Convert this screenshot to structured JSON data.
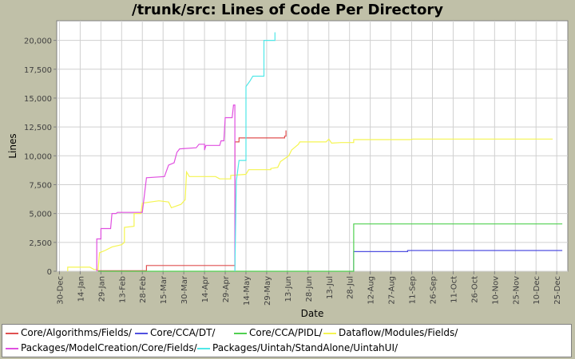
{
  "chart_data": {
    "type": "line",
    "title": "/trunk/src: Lines of Code Per Directory",
    "xlabel": "Date",
    "ylabel": "Lines",
    "xlim": [
      "2005-12-28",
      "2007-01-02"
    ],
    "ylim": [
      0,
      21700
    ],
    "grid": true,
    "legend_position": "bottom",
    "x_ticks": [
      "30-Dec",
      "14-Jan",
      "29-Jan",
      "13-Feb",
      "28-Feb",
      "15-Mar",
      "30-Mar",
      "14-Apr",
      "29-Apr",
      "14-May",
      "29-May",
      "13-Jun",
      "28-Jun",
      "13-Jul",
      "28-Jul",
      "12-Aug",
      "27-Aug",
      "11-Sep",
      "26-Sep",
      "11-Oct",
      "26-Oct",
      "10-Nov",
      "25-Nov",
      "10-Dec",
      "25-Dec"
    ],
    "x_tick_dates": [
      "2005-12-30",
      "2006-01-14",
      "2006-01-29",
      "2006-02-13",
      "2006-02-28",
      "2006-03-15",
      "2006-03-30",
      "2006-04-14",
      "2006-04-29",
      "2006-05-14",
      "2006-05-29",
      "2006-06-13",
      "2006-06-28",
      "2006-07-13",
      "2006-07-28",
      "2006-08-12",
      "2006-08-27",
      "2006-09-11",
      "2006-09-26",
      "2006-10-11",
      "2006-10-26",
      "2006-11-10",
      "2006-11-25",
      "2006-12-10",
      "2006-12-25"
    ],
    "y_ticks": [
      0,
      2500,
      5000,
      7500,
      10000,
      12500,
      15000,
      17500,
      20000
    ],
    "y_tick_labels": [
      "0",
      "2,500",
      "5,000",
      "7,500",
      "10,000",
      "12,500",
      "15,000",
      "17,500",
      "20,000"
    ],
    "series": [
      {
        "name": "Core/Algorithms/Fields/",
        "color": "#e05050",
        "points": [
          [
            "2006-01-27",
            0
          ],
          [
            "2006-01-27",
            50
          ],
          [
            "2006-03-03",
            50
          ],
          [
            "2006-03-03",
            500
          ],
          [
            "2006-05-06",
            500
          ],
          [
            "2006-05-06",
            11200
          ],
          [
            "2006-05-09",
            11200
          ],
          [
            "2006-05-09",
            11550
          ],
          [
            "2006-06-11",
            11550
          ],
          [
            "2006-06-11",
            11700
          ],
          [
            "2006-06-12",
            11700
          ],
          [
            "2006-06-12",
            12200
          ]
        ]
      },
      {
        "name": "Core/CCA/DT/",
        "color": "#5050e0",
        "points": [
          [
            "2006-07-31",
            0
          ],
          [
            "2006-07-31",
            1700
          ],
          [
            "2006-09-08",
            1700
          ],
          [
            "2006-09-08",
            1800
          ],
          [
            "2006-12-29",
            1800
          ]
        ]
      },
      {
        "name": "Core/CCA/PIDL/",
        "color": "#50d050",
        "points": [
          [
            "2006-01-27",
            0
          ],
          [
            "2006-07-31",
            0
          ],
          [
            "2006-07-31",
            4100
          ],
          [
            "2006-12-29",
            4100
          ]
        ]
      },
      {
        "name": "Dataflow/Modules/Fields/",
        "color": "#f5f550",
        "points": [
          [
            "2006-01-05",
            0
          ],
          [
            "2006-01-05",
            350
          ],
          [
            "2006-01-21",
            350
          ],
          [
            "2006-01-24",
            150
          ],
          [
            "2006-01-27",
            150
          ],
          [
            "2006-01-28",
            1600
          ],
          [
            "2006-02-01",
            1800
          ],
          [
            "2006-02-06",
            2100
          ],
          [
            "2006-02-13",
            2300
          ],
          [
            "2006-02-15",
            2500
          ],
          [
            "2006-02-15",
            3800
          ],
          [
            "2006-02-22",
            3900
          ],
          [
            "2006-02-22",
            5000
          ],
          [
            "2006-02-27",
            5000
          ],
          [
            "2006-02-28",
            5900
          ],
          [
            "2006-03-12",
            6100
          ],
          [
            "2006-03-19",
            6000
          ],
          [
            "2006-03-21",
            5500
          ],
          [
            "2006-03-28",
            5800
          ],
          [
            "2006-03-31",
            6200
          ],
          [
            "2006-04-01",
            8600
          ],
          [
            "2006-04-03",
            8200
          ],
          [
            "2006-04-22",
            8200
          ],
          [
            "2006-04-25",
            8000
          ],
          [
            "2006-05-03",
            8000
          ],
          [
            "2006-05-03",
            8300
          ],
          [
            "2006-05-14",
            8400
          ],
          [
            "2006-05-16",
            8800
          ],
          [
            "2006-06-01",
            8800
          ],
          [
            "2006-06-01",
            8900
          ],
          [
            "2006-06-06",
            9000
          ],
          [
            "2006-06-08",
            9500
          ],
          [
            "2006-06-14",
            10000
          ],
          [
            "2006-06-16",
            10500
          ],
          [
            "2006-06-21",
            11000
          ],
          [
            "2006-06-22",
            11200
          ],
          [
            "2006-07-11",
            11200
          ],
          [
            "2006-07-13",
            11450
          ],
          [
            "2006-07-15",
            11100
          ],
          [
            "2006-07-22",
            11150
          ],
          [
            "2006-07-31",
            11150
          ],
          [
            "2006-07-31",
            11400
          ],
          [
            "2006-09-10",
            11400
          ],
          [
            "2006-09-12",
            11450
          ],
          [
            "2006-12-22",
            11450
          ]
        ]
      },
      {
        "name": "Packages/ModelCreation/Core/Fields/",
        "color": "#e050e0",
        "points": [
          [
            "2006-01-26",
            0
          ],
          [
            "2006-01-26",
            2800
          ],
          [
            "2006-01-29",
            2800
          ],
          [
            "2006-01-29",
            3700
          ],
          [
            "2006-02-05",
            3700
          ],
          [
            "2006-02-06",
            5000
          ],
          [
            "2006-02-09",
            5000
          ],
          [
            "2006-02-10",
            5100
          ],
          [
            "2006-02-28",
            5100
          ],
          [
            "2006-03-03",
            8100
          ],
          [
            "2006-03-16",
            8200
          ],
          [
            "2006-03-19",
            9200
          ],
          [
            "2006-03-23",
            9400
          ],
          [
            "2006-03-25",
            10300
          ],
          [
            "2006-03-27",
            10600
          ],
          [
            "2006-04-08",
            10700
          ],
          [
            "2006-04-10",
            11000
          ],
          [
            "2006-04-14",
            11000
          ],
          [
            "2006-04-14",
            10500
          ],
          [
            "2006-04-15",
            10900
          ],
          [
            "2006-04-25",
            10900
          ],
          [
            "2006-04-26",
            11300
          ],
          [
            "2006-04-28",
            11300
          ],
          [
            "2006-04-29",
            13300
          ],
          [
            "2006-05-04",
            13300
          ],
          [
            "2006-05-05",
            14400
          ],
          [
            "2006-05-06",
            14400
          ],
          [
            "2006-05-06",
            0
          ]
        ]
      },
      {
        "name": "Packages/Uintah/StandAlone/UintahUI/",
        "color": "#50e8e8",
        "points": [
          [
            "2006-05-06",
            0
          ],
          [
            "2006-05-07",
            7800
          ],
          [
            "2006-05-09",
            9600
          ],
          [
            "2006-05-14",
            9600
          ],
          [
            "2006-05-14",
            16000
          ],
          [
            "2006-05-17",
            16500
          ],
          [
            "2006-05-19",
            16900
          ],
          [
            "2006-05-27",
            16900
          ],
          [
            "2006-05-27",
            20000
          ],
          [
            "2006-06-04",
            20000
          ],
          [
            "2006-06-04",
            20700
          ]
        ]
      }
    ]
  }
}
